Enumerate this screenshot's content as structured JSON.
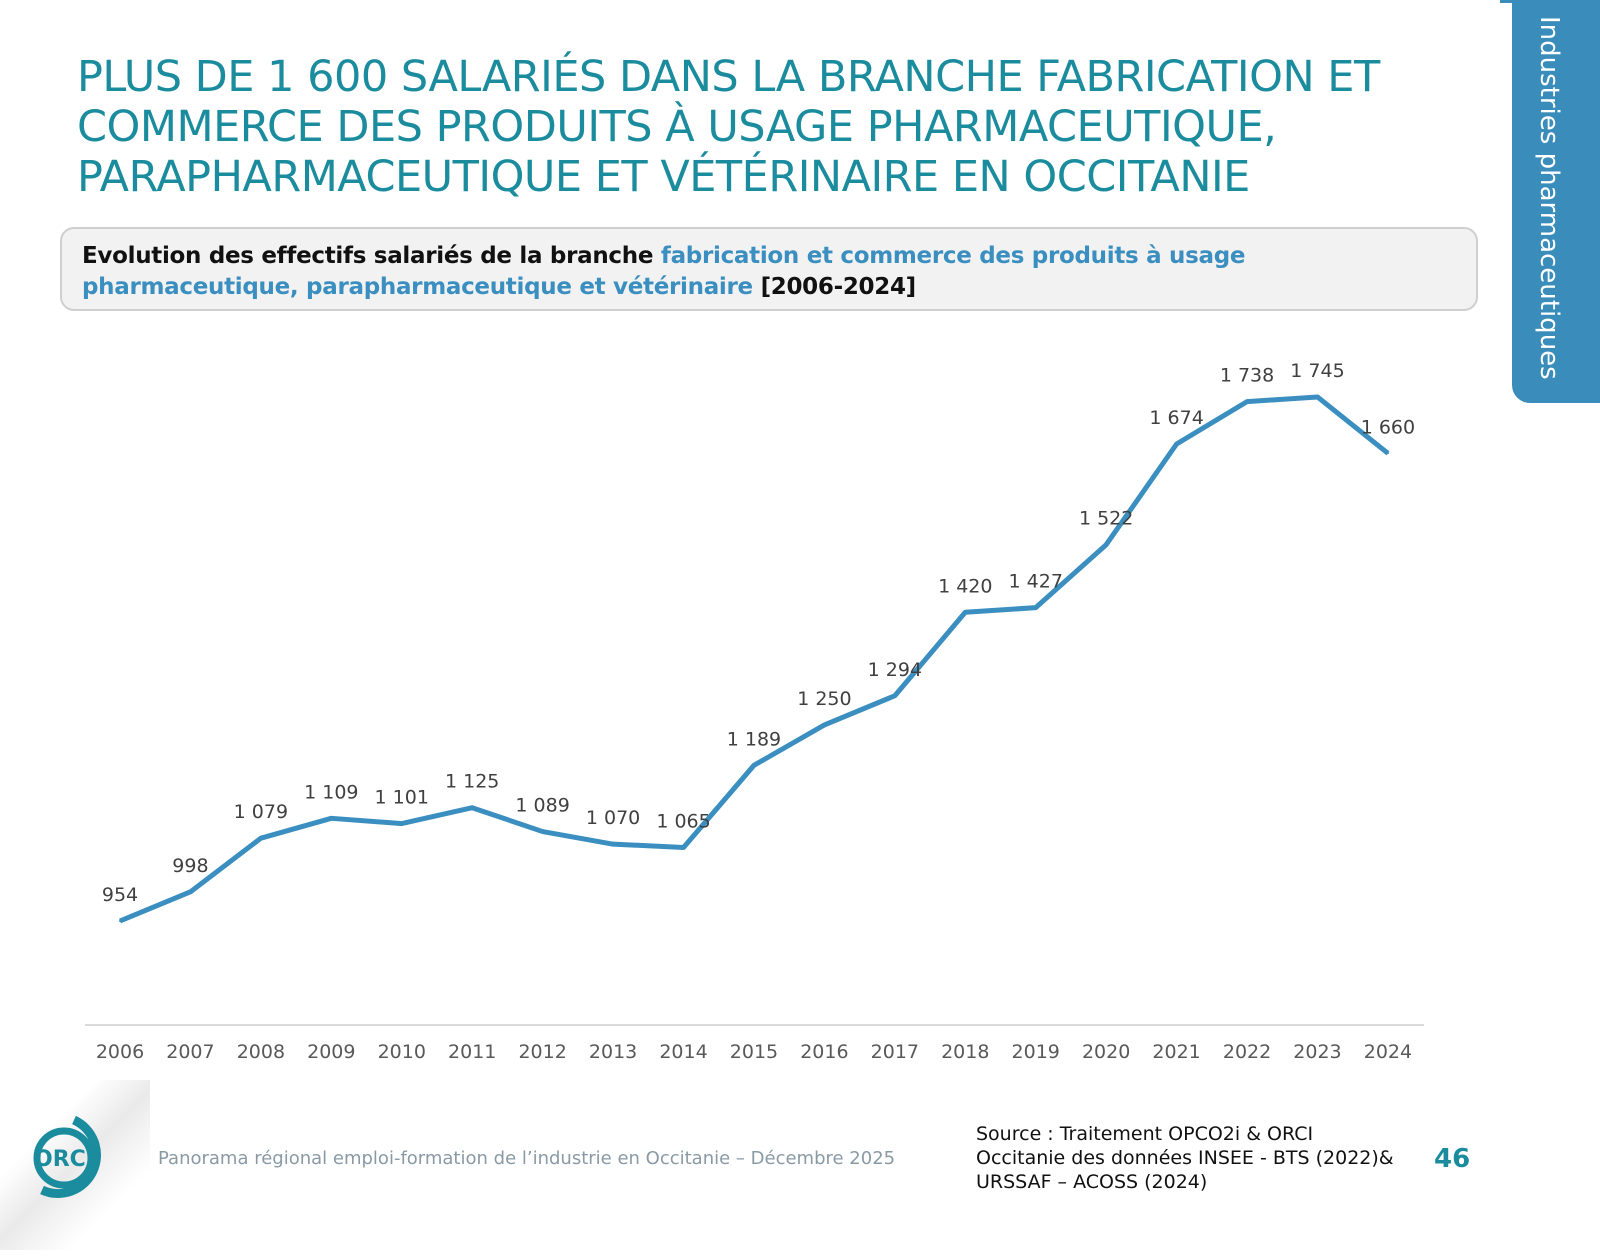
{
  "header": {
    "title": "PLUS DE 1 600 SALARIÉS DANS LA BRANCHE FABRICATION ET COMMERCE DES PRODUITS À USAGE PHARMACEUTIQUE, PARAPHARMACEUTIQUE ET VÉTÉRINAIRE EN OCCITANIE",
    "side_tab": "Industries pharmaceutiques"
  },
  "subtitle": {
    "part1": "Evolution des effectifs salariés de la branche ",
    "highlight": "fabrication et commerce des produits à usage pharmaceutique, parapharmaceutique et vétérinaire",
    "part2": "  [2006-2024]"
  },
  "chart_data": {
    "type": "line",
    "title": "",
    "xlabel": "",
    "ylabel": "",
    "categories": [
      "2006",
      "2007",
      "2008",
      "2009",
      "2010",
      "2011",
      "2012",
      "2013",
      "2014",
      "2015",
      "2016",
      "2017",
      "2018",
      "2019",
      "2020",
      "2021",
      "2022",
      "2023",
      "2024"
    ],
    "values": [
      954,
      998,
      1079,
      1109,
      1101,
      1125,
      1089,
      1070,
      1065,
      1189,
      1250,
      1294,
      1420,
      1427,
      1522,
      1674,
      1738,
      1745,
      1660
    ],
    "data_labels": [
      "954",
      "998",
      "1 079",
      "1 109",
      "1 101",
      "1 125",
      "1 089",
      "1 070",
      "1 065",
      "1 189",
      "1 250",
      "1 294",
      "1 420",
      "1 427",
      "1 522",
      "1 674",
      "1 738",
      "1 745",
      "1 660"
    ],
    "grid": false,
    "legend": "none",
    "line_color": "#3a8fc0"
  },
  "footer": {
    "logo_text": "ORCI",
    "publication": "Panorama régional emploi-formation de l’industrie en Occitanie – Décembre 2025",
    "source_lines": [
      "Source : Traitement OPCO2i & ORCI",
      "Occitanie des données  INSEE - BTS (2022)&",
      "URSSAF – ACOSS (2024)"
    ],
    "page_number": "46"
  },
  "colors": {
    "title": "#1b8c9e",
    "accent": "#3a8dbb",
    "line": "#3a8fc0"
  }
}
